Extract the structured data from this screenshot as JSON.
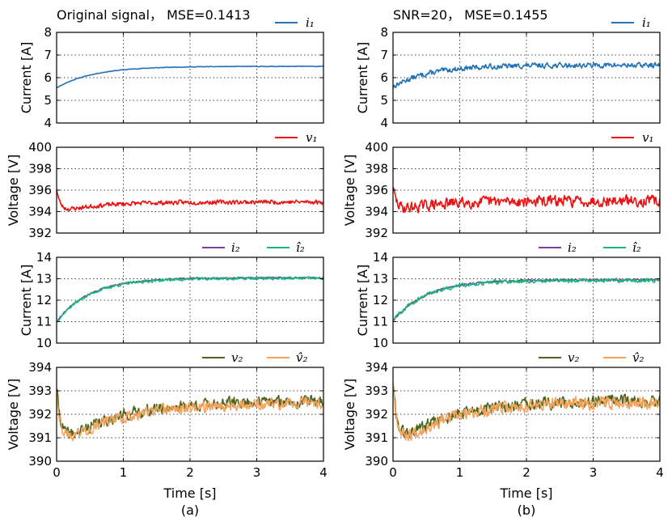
{
  "figure": {
    "bottom_labels": [
      "(a)",
      "(b)"
    ],
    "xlabel": "Time [s]"
  },
  "colors": {
    "i1": "#2272b6",
    "v1": "#ee1111",
    "i2": "#7e3fa0",
    "i2_hat": "#14b87a",
    "v2": "#4d6421",
    "v2_hat": "#f5a35a"
  },
  "chart_data": [
    {
      "type": "line",
      "column": "a",
      "row": 0,
      "title": "Original signal， MSE=0.1413",
      "ylabel": "Current [A]",
      "ylim": [
        4,
        8
      ],
      "yticks": [
        4,
        5,
        6,
        7,
        8
      ],
      "xlim": [
        0,
        4
      ],
      "xticks": [
        0,
        1,
        2,
        3,
        4
      ],
      "show_xticklabels": false,
      "grid": true,
      "series": [
        {
          "name": "i₁",
          "color_key": "i1",
          "kind": "expo",
          "start": 5.55,
          "end": 6.5,
          "tau": 0.55,
          "noise": 0.012,
          "seed": 11
        }
      ]
    },
    {
      "type": "line",
      "column": "a",
      "row": 1,
      "title": "",
      "ylabel": "Voltage [V]",
      "ylim": [
        392,
        400
      ],
      "yticks": [
        392,
        394,
        396,
        398,
        400
      ],
      "xlim": [
        0,
        4
      ],
      "xticks": [
        0,
        1,
        2,
        3,
        4
      ],
      "show_xticklabels": false,
      "grid": true,
      "series": [
        {
          "name": "v₁",
          "color_key": "v1",
          "kind": "dip",
          "start": 396.2,
          "base": 394.1,
          "end": 394.9,
          "fall": 0.05,
          "rise": 0.9,
          "noise": 0.18,
          "seed": 23
        }
      ]
    },
    {
      "type": "line",
      "column": "a",
      "row": 2,
      "title": "",
      "ylabel": "Current [A]",
      "ylim": [
        10,
        14
      ],
      "yticks": [
        10,
        11,
        12,
        13,
        14
      ],
      "xlim": [
        0,
        4
      ],
      "xticks": [
        0,
        1,
        2,
        3,
        4
      ],
      "show_xticklabels": false,
      "grid": true,
      "series": [
        {
          "name": "i₂",
          "color_key": "i2",
          "kind": "expo",
          "start": 11.0,
          "end": 13.05,
          "tau": 0.5,
          "noise": 0.03,
          "seed": 31
        },
        {
          "name": "î₂",
          "color_key": "i2_hat",
          "kind": "expo",
          "start": 11.0,
          "end": 13.02,
          "tau": 0.5,
          "noise": 0.06,
          "seed": 37
        }
      ]
    },
    {
      "type": "line",
      "column": "a",
      "row": 3,
      "title": "",
      "ylabel": "Voltage [V]",
      "ylim": [
        390,
        394
      ],
      "yticks": [
        390,
        391,
        392,
        393,
        394
      ],
      "xlim": [
        0,
        4
      ],
      "xticks": [
        0,
        1,
        2,
        3,
        4
      ],
      "xticklabels": [
        "0",
        "1",
        "2",
        "3",
        "4"
      ],
      "show_xticklabels": true,
      "grid": true,
      "series": [
        {
          "name": "v₂",
          "color_key": "v2",
          "kind": "dip",
          "start": 393.2,
          "base": 390.9,
          "end": 392.6,
          "fall": 0.06,
          "rise": 1.4,
          "noise": 0.22,
          "seed": 41
        },
        {
          "name": "v̂₂",
          "color_key": "v2_hat",
          "kind": "dip",
          "start": 393.1,
          "base": 390.85,
          "end": 392.5,
          "fall": 0.06,
          "rise": 1.4,
          "noise": 0.22,
          "seed": 43
        }
      ]
    },
    {
      "type": "line",
      "column": "b",
      "row": 0,
      "title": "SNR=20，   MSE=0.1455",
      "ylabel": "Current [A]",
      "ylim": [
        4,
        8
      ],
      "yticks": [
        4,
        5,
        6,
        7,
        8
      ],
      "xlim": [
        0,
        4
      ],
      "xticks": [
        0,
        1,
        2,
        3,
        4
      ],
      "show_xticklabels": false,
      "grid": true,
      "series": [
        {
          "name": "i₁",
          "color_key": "i1",
          "kind": "expo",
          "start": 5.6,
          "end": 6.55,
          "tau": 0.55,
          "noise": 0.1,
          "seed": 13
        }
      ]
    },
    {
      "type": "line",
      "column": "b",
      "row": 1,
      "title": "",
      "ylabel": "Voltage [V]",
      "ylim": [
        392,
        400
      ],
      "yticks": [
        392,
        394,
        396,
        398,
        400
      ],
      "xlim": [
        0,
        4
      ],
      "xticks": [
        0,
        1,
        2,
        3,
        4
      ],
      "show_xticklabels": false,
      "grid": true,
      "series": [
        {
          "name": "v₁",
          "color_key": "v1",
          "kind": "dip",
          "start": 396.3,
          "base": 394.2,
          "end": 395.0,
          "fall": 0.05,
          "rise": 0.9,
          "noise": 0.45,
          "seed": 29
        }
      ]
    },
    {
      "type": "line",
      "column": "b",
      "row": 2,
      "title": "",
      "ylabel": "Current [A]",
      "ylim": [
        10,
        14
      ],
      "yticks": [
        10,
        11,
        12,
        13,
        14
      ],
      "xlim": [
        0,
        4
      ],
      "xticks": [
        0,
        1,
        2,
        3,
        4
      ],
      "show_xticklabels": false,
      "grid": true,
      "series": [
        {
          "name": "i₂",
          "color_key": "i2",
          "kind": "expo",
          "start": 11.05,
          "end": 12.95,
          "tau": 0.5,
          "noise": 0.04,
          "seed": 53
        },
        {
          "name": "î₂",
          "color_key": "i2_hat",
          "kind": "expo",
          "start": 11.05,
          "end": 12.93,
          "tau": 0.5,
          "noise": 0.08,
          "seed": 59
        }
      ]
    },
    {
      "type": "line",
      "column": "b",
      "row": 3,
      "title": "",
      "ylabel": "Voltage [V]",
      "ylim": [
        390,
        394
      ],
      "yticks": [
        390,
        391,
        392,
        393,
        394
      ],
      "xlim": [
        0,
        4
      ],
      "xticks": [
        0,
        1,
        2,
        3,
        4
      ],
      "xticklabels": [
        "0",
        "1",
        "2",
        "3",
        "4"
      ],
      "show_xticklabels": true,
      "grid": true,
      "series": [
        {
          "name": "v₂",
          "color_key": "v2",
          "kind": "dip",
          "start": 393.4,
          "base": 390.9,
          "end": 392.6,
          "fall": 0.06,
          "rise": 1.3,
          "noise": 0.24,
          "seed": 61
        },
        {
          "name": "v̂₂",
          "color_key": "v2_hat",
          "kind": "dip",
          "start": 393.5,
          "base": 390.85,
          "end": 392.55,
          "fall": 0.06,
          "rise": 1.3,
          "noise": 0.24,
          "seed": 67
        }
      ]
    }
  ]
}
